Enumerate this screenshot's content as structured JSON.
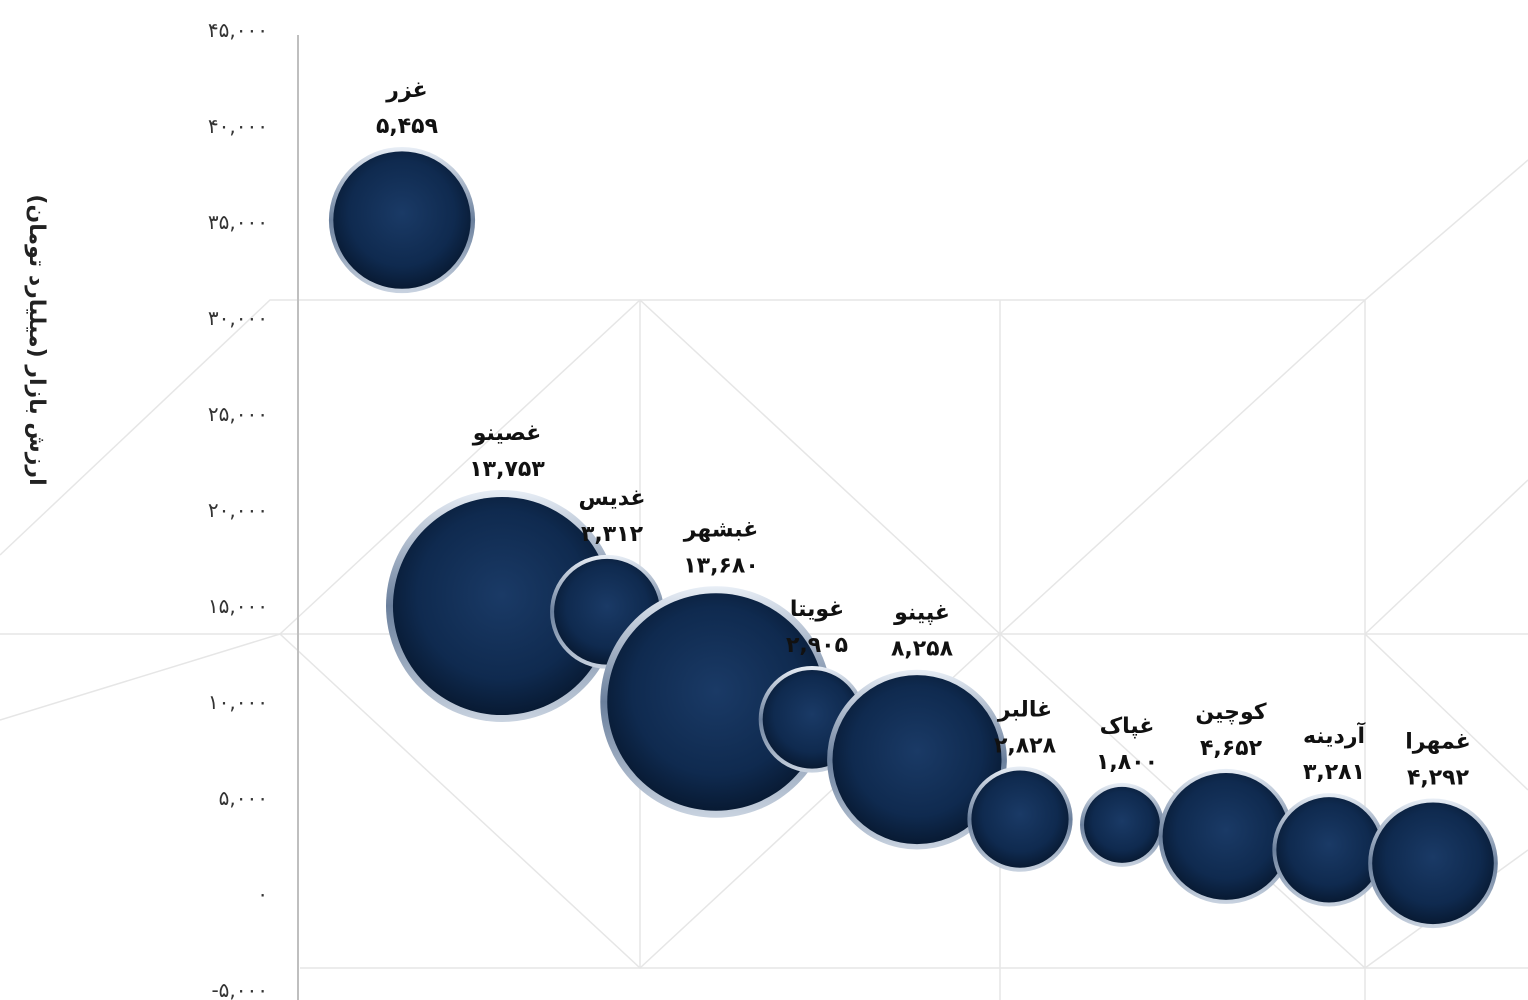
{
  "chart_data": {
    "type": "scatter",
    "ylabel": "ارزش بازار (میلیارد تومان)",
    "ylim": [
      -5000,
      45000
    ],
    "y_ticks": [
      -5000,
      0,
      5000,
      10000,
      15000,
      20000,
      25000,
      30000,
      35000,
      40000,
      45000
    ],
    "y_tick_labels": [
      "-۵,۰۰۰",
      "۰",
      "۵,۰۰۰",
      "۱۰,۰۰۰",
      "۱۵,۰۰۰",
      "۲۰,۰۰۰",
      "۲۵,۰۰۰",
      "۳۰,۰۰۰",
      "۳۵,۰۰۰",
      "۴۰,۰۰۰",
      "۴۵,۰۰۰"
    ],
    "bubble_color": "#0f2a4f",
    "points": [
      {
        "name": "غزر",
        "size_label": "۵,۴۵۹",
        "size": 5459,
        "y": 35100
      },
      {
        "name": "غصینو",
        "size_label": "۱۳,۷۵۳",
        "size": 13753,
        "y": 15000
      },
      {
        "name": "غدیس",
        "size_label": "۳,۳۱۲",
        "size": 3312,
        "y": 14700
      },
      {
        "name": "غبشهر",
        "size_label": "۱۳,۶۸۰",
        "size": 13680,
        "y": 10000
      },
      {
        "name": "غویتا",
        "size_label": "۲,۹۰۵",
        "size": 2905,
        "y": 9100
      },
      {
        "name": "غپینو",
        "size_label": "۸,۲۵۸",
        "size": 8258,
        "y": 7000
      },
      {
        "name": "غالبر",
        "size_label": "۲,۸۲۸",
        "size": 2828,
        "y": 3900
      },
      {
        "name": "غپاک",
        "size_label": "۱,۸۰۰",
        "size": 1800,
        "y": 3600
      },
      {
        "name": "کوچین",
        "size_label": "۴,۶۵۲",
        "size": 4652,
        "y": 3000
      },
      {
        "name": "آردینه",
        "size_label": "۳,۲۸۱",
        "size": 3281,
        "y": 2300
      },
      {
        "name": "غمهرا",
        "size_label": "۴,۲۹۲",
        "size": 4292,
        "y": 1600
      }
    ]
  }
}
